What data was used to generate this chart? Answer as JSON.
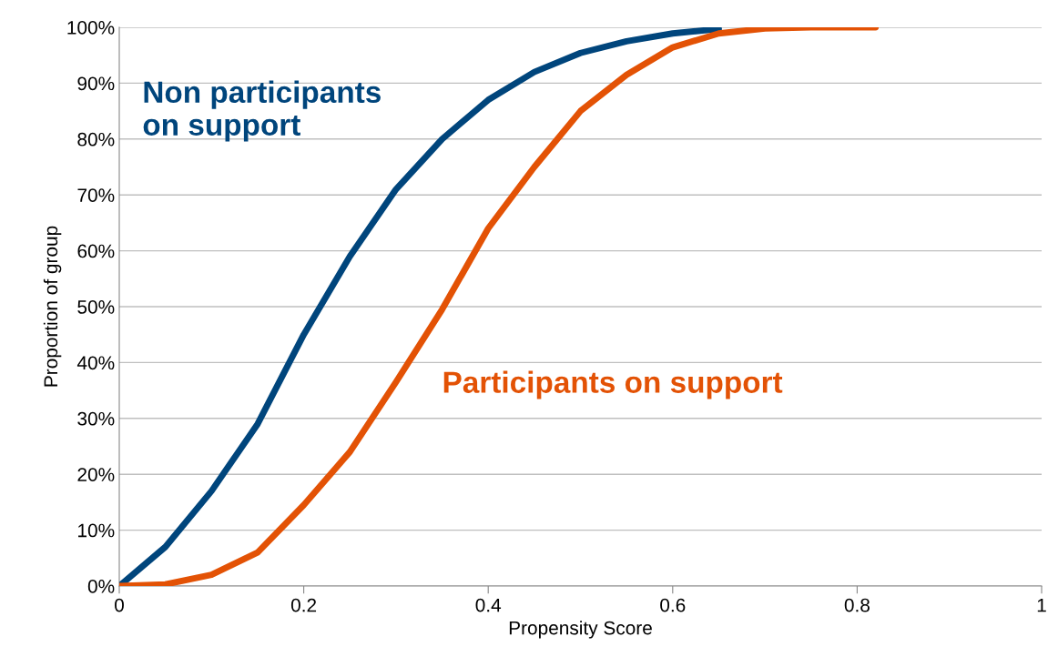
{
  "chart_data": {
    "type": "line",
    "xlabel": "Propensity Score",
    "ylabel": "Proportion of group",
    "xlim": [
      0,
      1
    ],
    "xticks": [
      {
        "value": 0,
        "label": "0"
      },
      0.2,
      0.4,
      0.6,
      0.8,
      {
        "value": 1,
        "label": "1"
      }
    ],
    "ylim": [
      0,
      100
    ],
    "yticks": [
      {
        "value": 0,
        "label": "0%"
      },
      {
        "value": 10,
        "label": "10%"
      },
      {
        "value": 20,
        "label": "20%"
      },
      {
        "value": 30,
        "label": "30%"
      },
      {
        "value": 40,
        "label": "40%"
      },
      {
        "value": 50,
        "label": "50%"
      },
      {
        "value": 60,
        "label": "60%"
      },
      {
        "value": 70,
        "label": "70%"
      },
      {
        "value": 80,
        "label": "80%"
      },
      {
        "value": 90,
        "label": "90%"
      },
      {
        "value": 100,
        "label": "100%"
      }
    ],
    "grid": "y",
    "legend": false,
    "marker": "none",
    "line_style": "solid",
    "series": [
      {
        "name": "Non participants\non support",
        "color": "#00457c",
        "x": [
          0,
          0.05,
          0.1,
          0.15,
          0.2,
          0.25,
          0.3,
          0.35,
          0.4,
          0.45,
          0.5,
          0.55,
          0.6,
          0.65
        ],
        "values": [
          0,
          7,
          17,
          29,
          45,
          59,
          71,
          80,
          87,
          92,
          95.4,
          97.5,
          98.9,
          99.7
        ]
      },
      {
        "name": "Participants on support",
        "color": "#e35205",
        "x": [
          0,
          0.05,
          0.1,
          0.15,
          0.2,
          0.25,
          0.3,
          0.35,
          0.4,
          0.45,
          0.5,
          0.55,
          0.6,
          0.65,
          0.7,
          0.75,
          0.82
        ],
        "values": [
          0,
          0.3,
          2,
          6,
          14.5,
          24,
          36.5,
          49.5,
          64,
          75,
          85,
          91.5,
          96.4,
          98.9,
          99.8,
          100,
          100
        ]
      }
    ]
  }
}
